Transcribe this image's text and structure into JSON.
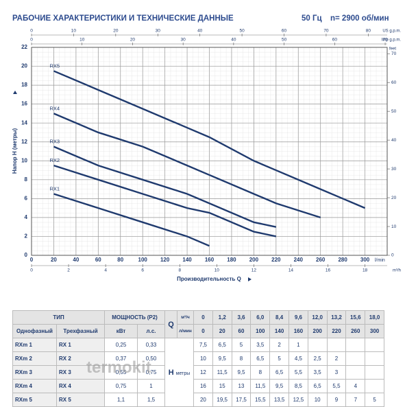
{
  "header": {
    "title": "РАБОЧИЕ ХАРАКТЕРИСТИКИ И ТЕХНИЧЕСКИЕ ДАННЫЕ",
    "frequency": "50 Гц",
    "speed": "n= 2900 об/мин"
  },
  "chart_data": {
    "type": "line",
    "xlabel": "Производительность Q",
    "xunit": "l/min",
    "ylabel": "Напор H (метры)",
    "x": [
      20,
      60,
      100,
      140,
      160,
      200,
      220,
      260,
      300
    ],
    "series": [
      {
        "name": "RX1",
        "color": "#1f3a6e",
        "values": [
          6.5,
          5,
          3.5,
          2,
          1,
          null,
          null,
          null,
          null
        ]
      },
      {
        "name": "RX2",
        "color": "#1f3a6e",
        "values": [
          9.5,
          8,
          6.5,
          5,
          4.5,
          2.5,
          2,
          null,
          null
        ]
      },
      {
        "name": "RX3",
        "color": "#1f3a6e",
        "values": [
          11.5,
          9.5,
          8,
          6.5,
          5.5,
          3.5,
          3,
          null,
          null
        ]
      },
      {
        "name": "RX4",
        "color": "#1f3a6e",
        "values": [
          15,
          13,
          11.5,
          9.5,
          8.5,
          6.5,
          5.5,
          4,
          null
        ]
      },
      {
        "name": "RX5",
        "color": "#1f3a6e",
        "values": [
          19.5,
          17.5,
          15.5,
          13.5,
          12.5,
          10,
          9,
          7,
          5
        ]
      }
    ],
    "xlim": [
      0,
      320
    ],
    "xticks": [
      0,
      20,
      40,
      60,
      80,
      100,
      120,
      140,
      160,
      180,
      200,
      220,
      240,
      260,
      280,
      300
    ],
    "ylim": [
      0,
      22
    ],
    "yticks": [
      0,
      2,
      4,
      6,
      8,
      10,
      12,
      14,
      16,
      18,
      20,
      22
    ],
    "grid": true,
    "extra_axes": [
      {
        "label": "US g.p.m.",
        "side": "top",
        "lim": [
          0,
          84.5
        ],
        "ticks": [
          0,
          10,
          20,
          30,
          40,
          50,
          60,
          70,
          80
        ]
      },
      {
        "label": "Imp g.p.m.",
        "side": "top",
        "lim": [
          0,
          70.4
        ],
        "ticks": [
          0,
          10,
          20,
          30,
          40,
          50,
          60,
          70
        ]
      },
      {
        "label": "m³/h",
        "side": "bottom",
        "lim": [
          0,
          19.2
        ],
        "ticks": [
          0,
          2,
          4,
          6,
          8,
          10,
          12,
          14,
          16,
          18
        ]
      },
      {
        "label": "feet",
        "side": "right",
        "lim": [
          0,
          72.2
        ],
        "ticks": [
          0,
          10,
          20,
          30,
          40,
          50,
          60,
          70
        ]
      }
    ]
  },
  "table": {
    "type_header": "ТИП",
    "power_header": "МОЩНОСТЬ (P2)",
    "q_label": "Q",
    "q_unit_m3h": "м³/ч",
    "q_unit_lmin": "л/мин",
    "col_headers": [
      "Однофазный",
      "Трехфазный",
      "кВт",
      "л.с."
    ],
    "q_m3h": [
      "0",
      "1,2",
      "3,6",
      "6,0",
      "8,4",
      "9,6",
      "12,0",
      "13,2",
      "15,6",
      "18,0"
    ],
    "q_lmin": [
      "0",
      "20",
      "60",
      "100",
      "140",
      "160",
      "200",
      "220",
      "260",
      "300"
    ],
    "h_label": "H",
    "h_unit": "метры",
    "rows": [
      {
        "single": "RXm 1",
        "three": "RX 1",
        "kw": "0,25",
        "hp": "0,33",
        "h": [
          "7,5",
          "6,5",
          "5",
          "3,5",
          "2",
          "1"
        ]
      },
      {
        "single": "RXm 2",
        "three": "RX 2",
        "kw": "0,37",
        "hp": "0,50",
        "h": [
          "10",
          "9,5",
          "8",
          "6,5",
          "5",
          "4,5",
          "2,5",
          "2"
        ]
      },
      {
        "single": "RXm 3",
        "three": "RX 3",
        "kw": "0,55",
        "hp": "0,75",
        "h": [
          "12",
          "11,5",
          "9,5",
          "8",
          "6,5",
          "5,5",
          "3,5",
          "3"
        ]
      },
      {
        "single": "RXm 4",
        "three": "RX 4",
        "kw": "0,75",
        "hp": "1",
        "h": [
          "16",
          "15",
          "13",
          "11,5",
          "9,5",
          "8,5",
          "6,5",
          "5,5",
          "4"
        ]
      },
      {
        "single": "RXm 5",
        "three": "RX 5",
        "kw": "1,1",
        "hp": "1,5",
        "h": [
          "20",
          "19,5",
          "17,5",
          "15,5",
          "13,5",
          "12,5",
          "10",
          "9",
          "7",
          "5"
        ]
      }
    ]
  },
  "watermark": "termokit"
}
